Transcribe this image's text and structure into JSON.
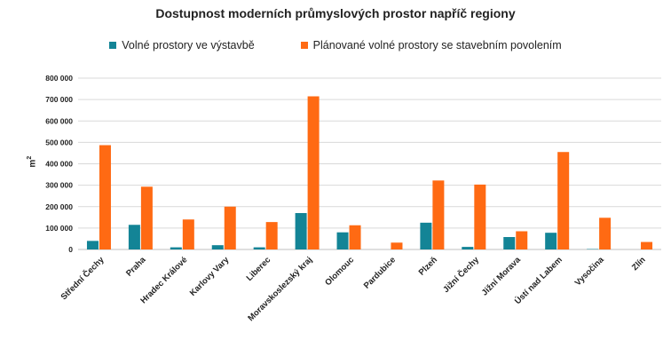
{
  "chart_data": {
    "type": "bar",
    "title": "Dostupnost moderních průmyslových prostor napříč regiony",
    "ylabel_base": "m",
    "ylabel_sup": "2",
    "ylim": [
      0,
      800000
    ],
    "yticks": [
      {
        "value": 0,
        "label": "0"
      },
      {
        "value": 100000,
        "label": "100 000"
      },
      {
        "value": 200000,
        "label": "200 000"
      },
      {
        "value": 300000,
        "label": "300 000"
      },
      {
        "value": 400000,
        "label": "400 000"
      },
      {
        "value": 500000,
        "label": "500 000"
      },
      {
        "value": 600000,
        "label": "600 000"
      },
      {
        "value": 700000,
        "label": "700 000"
      },
      {
        "value": 800000,
        "label": "800 000"
      }
    ],
    "grid": true,
    "legend_position": "top",
    "categories": [
      "Střední Čechy",
      "Praha",
      "Hradec Králové",
      "Karlovy Vary",
      "Liberec",
      "Moravskoslezský kraj",
      "Olomouc",
      "Pardubice",
      "Plzeň",
      "Jižní Čechy",
      "Jižní Morava",
      "Ústí nad Labem",
      "Vysočina",
      "Zlín"
    ],
    "series": [
      {
        "name": "Volné prostory ve výstavbě",
        "color": "#138496",
        "values": [
          40000,
          115000,
          10000,
          20000,
          10000,
          170000,
          80000,
          0,
          125000,
          12000,
          58000,
          78000,
          2000,
          0
        ]
      },
      {
        "name": "Plánované volné prostory se stavebním povolením",
        "color": "#ff6a13",
        "values": [
          487000,
          293000,
          140000,
          200000,
          128000,
          715000,
          113000,
          32000,
          322000,
          303000,
          85000,
          455000,
          148000,
          35000
        ]
      }
    ]
  }
}
